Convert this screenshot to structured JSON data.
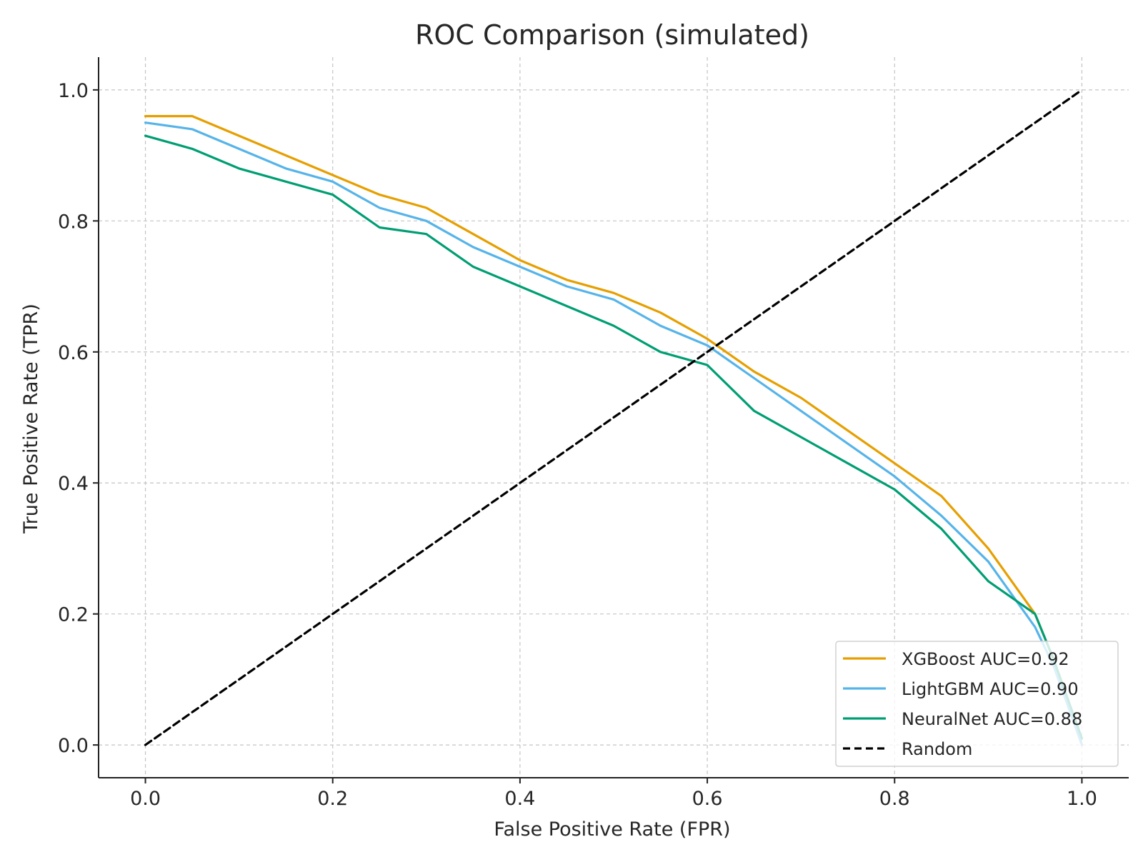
{
  "chart_data": {
    "type": "line",
    "title": "ROC Comparison (simulated)",
    "xlabel": "False Positive Rate (FPR)",
    "ylabel": "True Positive Rate (TPR)",
    "xlim": [
      -0.05,
      1.05
    ],
    "ylim": [
      -0.05,
      1.05
    ],
    "xticks": [
      0.0,
      0.2,
      0.4,
      0.6,
      0.8,
      1.0
    ],
    "yticks": [
      0.0,
      0.2,
      0.4,
      0.6,
      0.8,
      1.0
    ],
    "xtick_labels": [
      "0.0",
      "0.2",
      "0.4",
      "0.6",
      "0.8",
      "1.0"
    ],
    "ytick_labels": [
      "0.0",
      "0.2",
      "0.4",
      "0.6",
      "0.8",
      "1.0"
    ],
    "grid": true,
    "legend_position": "lower-right",
    "series": [
      {
        "name": "XGBoost AUC=0.92",
        "color": "#E69F00",
        "style": "solid",
        "x": [
          0.0,
          0.05,
          0.1,
          0.15,
          0.2,
          0.25,
          0.3,
          0.35,
          0.4,
          0.45,
          0.5,
          0.55,
          0.6,
          0.65,
          0.7,
          0.75,
          0.8,
          0.85,
          0.9,
          0.95,
          0.97,
          1.0
        ],
        "y": [
          0.96,
          0.96,
          0.93,
          0.9,
          0.87,
          0.84,
          0.82,
          0.78,
          0.74,
          0.71,
          0.69,
          0.66,
          0.62,
          0.57,
          0.53,
          0.48,
          0.43,
          0.38,
          0.3,
          0.2,
          0.13,
          0.0
        ]
      },
      {
        "name": "LightGBM AUC=0.90",
        "color": "#56B4E9",
        "style": "solid",
        "x": [
          0.0,
          0.05,
          0.1,
          0.15,
          0.2,
          0.25,
          0.3,
          0.35,
          0.4,
          0.45,
          0.5,
          0.55,
          0.6,
          0.65,
          0.7,
          0.75,
          0.8,
          0.85,
          0.9,
          0.95,
          0.97,
          1.0
        ],
        "y": [
          0.95,
          0.94,
          0.91,
          0.88,
          0.86,
          0.82,
          0.8,
          0.76,
          0.73,
          0.7,
          0.68,
          0.64,
          0.61,
          0.56,
          0.51,
          0.46,
          0.41,
          0.35,
          0.28,
          0.18,
          0.12,
          0.0
        ]
      },
      {
        "name": "NeuralNet AUC=0.88",
        "color": "#009E73",
        "style": "solid",
        "x": [
          0.0,
          0.05,
          0.1,
          0.15,
          0.2,
          0.25,
          0.3,
          0.35,
          0.4,
          0.45,
          0.5,
          0.55,
          0.6,
          0.65,
          0.7,
          0.75,
          0.8,
          0.85,
          0.9,
          0.95,
          0.97,
          1.0
        ],
        "y": [
          0.93,
          0.91,
          0.88,
          0.86,
          0.84,
          0.79,
          0.78,
          0.73,
          0.7,
          0.67,
          0.64,
          0.6,
          0.58,
          0.51,
          0.47,
          0.43,
          0.39,
          0.33,
          0.25,
          0.2,
          0.13,
          0.01
        ]
      },
      {
        "name": "Random",
        "color": "#000000",
        "style": "dashed",
        "x": [
          0.0,
          1.0
        ],
        "y": [
          0.0,
          1.0
        ]
      }
    ]
  }
}
